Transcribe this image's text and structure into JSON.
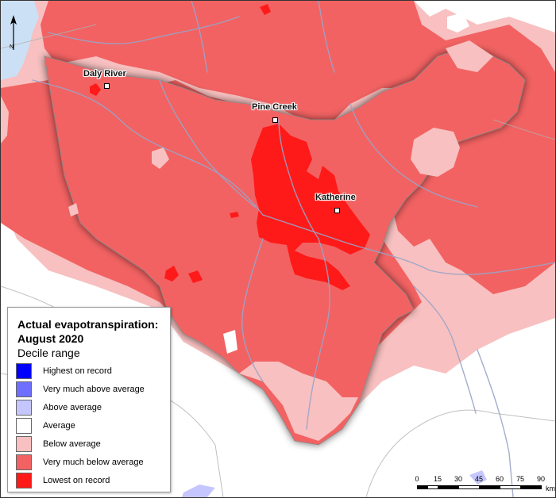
{
  "legend": {
    "title": "Actual evapotranspiration: August 2020",
    "subtitle": "Decile range",
    "items": [
      {
        "label": "Highest on record",
        "color": "#0000ff"
      },
      {
        "label": "Very much above average",
        "color": "#6f6fff"
      },
      {
        "label": "Above average",
        "color": "#c6c6ff"
      },
      {
        "label": "Average",
        "color": "#ffffff"
      },
      {
        "label": "Below average",
        "color": "#f8c0c0"
      },
      {
        "label": "Very much below average",
        "color": "#f26262"
      },
      {
        "label": "Lowest on record",
        "color": "#ff1a1a"
      }
    ]
  },
  "places": [
    {
      "name": "Daly River"
    },
    {
      "name": "Pine Creek"
    },
    {
      "name": "Katherine"
    }
  ],
  "scale": {
    "ticks": [
      "0",
      "15",
      "30",
      "45",
      "60",
      "75",
      "90"
    ],
    "unit": "km"
  },
  "north": {
    "label": "N"
  },
  "colors": {
    "water": "#cce0f5",
    "river": "#9aa4c8",
    "boundary": "#b0b0b0"
  }
}
